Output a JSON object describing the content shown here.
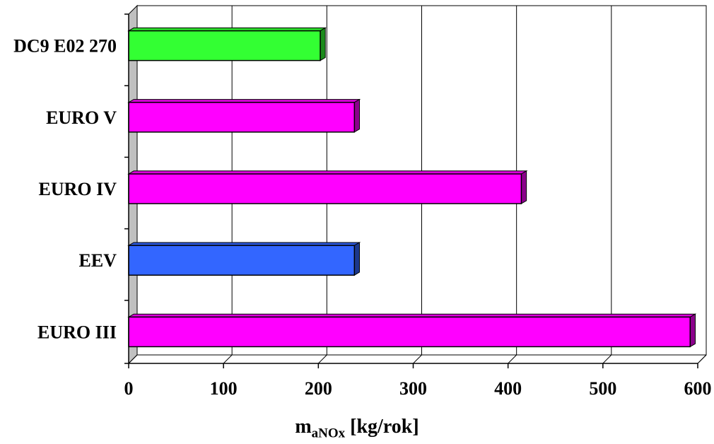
{
  "chart_data": {
    "type": "bar",
    "orientation": "horizontal",
    "categories": [
      "DC9 E02 270",
      "EURO V",
      "EURO IV",
      "EEV",
      "EURO III"
    ],
    "values": [
      202,
      238,
      414,
      238,
      592
    ],
    "bar_colors": [
      "#33ff33",
      "#ff00ff",
      "#ff00ff",
      "#3366ff",
      "#ff00ff"
    ],
    "xlim": [
      0,
      600
    ],
    "xticks": [
      0,
      100,
      200,
      300,
      400,
      500,
      600
    ],
    "xlabel_main": "m",
    "xlabel_sub": "aNOx",
    "xlabel_unit": " [kg/rok]",
    "grid": "vertical",
    "legend": "none"
  }
}
